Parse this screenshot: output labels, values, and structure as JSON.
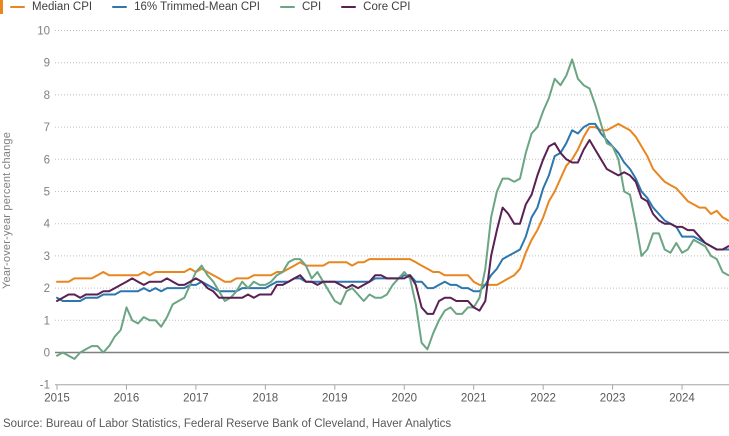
{
  "accent_color": "#E8861F",
  "source_note": "Source: Bureau of Labor Statistics, Federal Reserve Bank of Cleveland, Haver Analytics",
  "chart_data": {
    "type": "line",
    "title": "",
    "xlabel": "",
    "ylabel": "Year-over-year percent change",
    "ylim": [
      -1,
      10
    ],
    "yticks": [
      -1,
      0,
      1,
      2,
      3,
      4,
      5,
      6,
      7,
      8,
      9,
      10
    ],
    "xtick_labels": [
      "2015",
      "2016",
      "2017",
      "2018",
      "2019",
      "2020",
      "2021",
      "2022",
      "2023",
      "2024"
    ],
    "x_start": "Jan 2015",
    "x_end": "Sep 2024",
    "x_frequency": "monthly",
    "grid": "horizontal dotted, solid line at zero",
    "legend_position": "top-left",
    "colors": {
      "grid": "#bfbfbf",
      "zero_line": "#808080",
      "axis": "#a6a6a6",
      "ytick_text": "#7f7f7f",
      "xtick_text": "#595959"
    },
    "series": [
      {
        "name": "Median CPI",
        "color": "#E8861F",
        "values": [
          2.2,
          2.2,
          2.2,
          2.3,
          2.3,
          2.3,
          2.3,
          2.4,
          2.5,
          2.4,
          2.4,
          2.4,
          2.4,
          2.4,
          2.4,
          2.5,
          2.4,
          2.5,
          2.5,
          2.5,
          2.5,
          2.5,
          2.5,
          2.6,
          2.5,
          2.6,
          2.5,
          2.4,
          2.3,
          2.2,
          2.2,
          2.3,
          2.3,
          2.3,
          2.4,
          2.4,
          2.4,
          2.4,
          2.5,
          2.5,
          2.6,
          2.7,
          2.8,
          2.7,
          2.7,
          2.7,
          2.7,
          2.8,
          2.8,
          2.8,
          2.8,
          2.7,
          2.8,
          2.8,
          2.9,
          2.9,
          2.9,
          2.9,
          2.9,
          2.9,
          2.9,
          2.9,
          2.8,
          2.7,
          2.6,
          2.5,
          2.5,
          2.4,
          2.4,
          2.4,
          2.4,
          2.4,
          2.2,
          2.1,
          2.1,
          2.1,
          2.1,
          2.2,
          2.3,
          2.4,
          2.6,
          3.1,
          3.5,
          3.8,
          4.2,
          4.7,
          5.0,
          5.4,
          5.8,
          6.0,
          6.3,
          6.7,
          7.0,
          7.0,
          6.9,
          6.9,
          7.0,
          7.1,
          7.0,
          6.9,
          6.7,
          6.4,
          6.1,
          5.7,
          5.5,
          5.3,
          5.2,
          5.1,
          4.9,
          4.7,
          4.6,
          4.5,
          4.5,
          4.3,
          4.4,
          4.2,
          4.1
        ]
      },
      {
        "name": "16% Trimmed-Mean CPI",
        "color": "#2E77AE",
        "values": [
          1.7,
          1.6,
          1.6,
          1.6,
          1.6,
          1.7,
          1.7,
          1.7,
          1.8,
          1.8,
          1.8,
          1.9,
          1.9,
          1.9,
          1.9,
          2.0,
          1.9,
          2.0,
          1.9,
          2.0,
          2.0,
          2.0,
          2.0,
          2.1,
          2.1,
          2.2,
          2.1,
          2.0,
          1.9,
          1.9,
          1.9,
          1.9,
          2.0,
          2.0,
          2.0,
          2.0,
          2.0,
          2.1,
          2.2,
          2.2,
          2.2,
          2.3,
          2.3,
          2.2,
          2.2,
          2.2,
          2.2,
          2.2,
          2.2,
          2.2,
          2.2,
          2.2,
          2.2,
          2.2,
          2.2,
          2.3,
          2.3,
          2.3,
          2.3,
          2.3,
          2.4,
          2.4,
          2.2,
          2.2,
          2.0,
          2.0,
          2.1,
          2.2,
          2.1,
          2.1,
          2.0,
          2.0,
          1.9,
          1.9,
          2.1,
          2.4,
          2.6,
          2.9,
          3.0,
          3.1,
          3.2,
          3.6,
          4.2,
          4.5,
          5.1,
          5.5,
          6.1,
          6.2,
          6.5,
          6.9,
          6.8,
          7.0,
          7.1,
          7.1,
          6.8,
          6.6,
          6.4,
          6.2,
          5.9,
          5.7,
          5.4,
          5.0,
          4.8,
          4.5,
          4.3,
          4.1,
          4.0,
          3.9,
          3.6,
          3.6,
          3.6,
          3.5,
          3.4,
          3.3,
          3.2,
          3.2,
          3.2
        ]
      },
      {
        "name": "CPI",
        "color": "#6BA583",
        "values": [
          -0.1,
          0.0,
          -0.1,
          -0.2,
          0.0,
          0.1,
          0.2,
          0.2,
          0.0,
          0.2,
          0.5,
          0.7,
          1.4,
          1.0,
          0.9,
          1.1,
          1.0,
          1.0,
          0.8,
          1.1,
          1.5,
          1.6,
          1.7,
          2.1,
          2.5,
          2.7,
          2.4,
          2.2,
          1.9,
          1.6,
          1.7,
          1.9,
          2.2,
          2.0,
          2.2,
          2.1,
          2.1,
          2.2,
          2.4,
          2.5,
          2.8,
          2.9,
          2.9,
          2.7,
          2.3,
          2.5,
          2.2,
          1.9,
          1.6,
          1.5,
          1.9,
          2.0,
          1.8,
          1.6,
          1.8,
          1.7,
          1.7,
          1.8,
          2.1,
          2.3,
          2.5,
          2.3,
          1.5,
          0.3,
          0.1,
          0.6,
          1.0,
          1.3,
          1.4,
          1.2,
          1.2,
          1.4,
          1.4,
          1.7,
          2.6,
          4.2,
          5.0,
          5.4,
          5.4,
          5.3,
          5.4,
          6.2,
          6.8,
          7.0,
          7.5,
          7.9,
          8.5,
          8.3,
          8.6,
          9.1,
          8.5,
          8.3,
          8.2,
          7.7,
          7.1,
          6.5,
          6.4,
          6.0,
          5.0,
          4.9,
          4.0,
          3.0,
          3.2,
          3.7,
          3.7,
          3.2,
          3.1,
          3.4,
          3.1,
          3.2,
          3.5,
          3.4,
          3.3,
          3.0,
          2.9,
          2.5,
          2.4
        ]
      },
      {
        "name": "Core CPI",
        "color": "#5A2153",
        "values": [
          1.6,
          1.7,
          1.8,
          1.8,
          1.7,
          1.8,
          1.8,
          1.8,
          1.9,
          1.9,
          2.0,
          2.1,
          2.2,
          2.3,
          2.2,
          2.1,
          2.2,
          2.2,
          2.2,
          2.3,
          2.2,
          2.1,
          2.1,
          2.2,
          2.3,
          2.2,
          2.0,
          1.9,
          1.7,
          1.7,
          1.7,
          1.7,
          1.7,
          1.8,
          1.7,
          1.8,
          1.8,
          1.8,
          2.1,
          2.1,
          2.2,
          2.3,
          2.4,
          2.2,
          2.2,
          2.1,
          2.2,
          2.2,
          2.2,
          2.1,
          2.0,
          2.1,
          2.0,
          2.1,
          2.2,
          2.4,
          2.4,
          2.3,
          2.3,
          2.3,
          2.3,
          2.4,
          2.1,
          1.4,
          1.2,
          1.2,
          1.6,
          1.7,
          1.7,
          1.6,
          1.6,
          1.6,
          1.4,
          1.3,
          1.6,
          3.0,
          3.8,
          4.5,
          4.3,
          4.0,
          4.0,
          4.6,
          4.9,
          5.5,
          6.0,
          6.4,
          6.5,
          6.2,
          6.0,
          5.9,
          5.9,
          6.3,
          6.6,
          6.3,
          6.0,
          5.7,
          5.6,
          5.5,
          5.6,
          5.5,
          5.3,
          4.8,
          4.7,
          4.3,
          4.1,
          4.0,
          4.0,
          3.9,
          3.9,
          3.8,
          3.8,
          3.6,
          3.4,
          3.3,
          3.2,
          3.2,
          3.3
        ]
      }
    ]
  }
}
